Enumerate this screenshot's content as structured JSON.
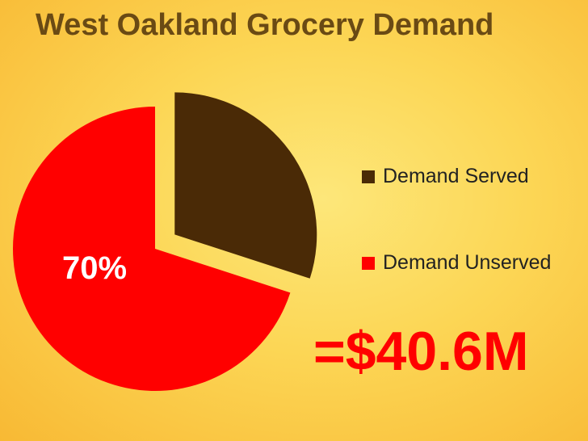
{
  "chart_data": {
    "type": "pie",
    "title": "West Oakland Grocery Demand",
    "slices": [
      {
        "label": "Demand Served",
        "value": 30,
        "color": "#4a2a06",
        "data_label": ""
      },
      {
        "label": "Demand Unserved",
        "value": 70,
        "color": "#ff0000",
        "data_label": "70%"
      }
    ],
    "legend_position": "right"
  },
  "annotation": "=$40.6M"
}
